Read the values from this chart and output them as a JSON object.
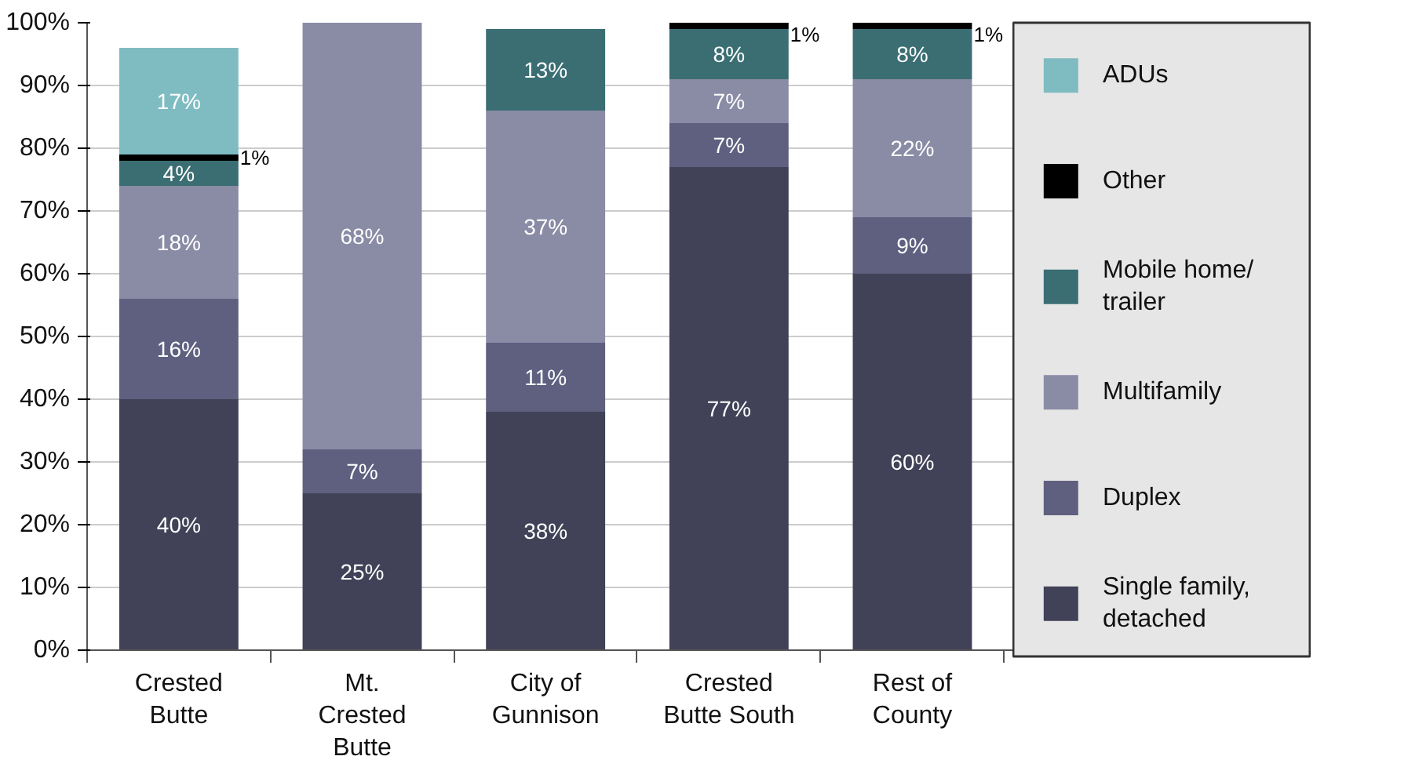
{
  "chart_data": {
    "type": "bar",
    "stacked": true,
    "grid": "y",
    "legend": "right",
    "categories": [
      "Crested\nButte",
      "Mt.\nCrested\nButte",
      "City of\nGunnison",
      "Crested\nButte South",
      "Rest of\nCounty"
    ],
    "ylim": [
      0,
      100
    ],
    "yticks": [
      {
        "value": 0,
        "label": "0%"
      },
      {
        "value": 10,
        "label": "10%"
      },
      {
        "value": 20,
        "label": "20%"
      },
      {
        "value": 30,
        "label": "30%"
      },
      {
        "value": 40,
        "label": "40%"
      },
      {
        "value": 50,
        "label": "50%"
      },
      {
        "value": 60,
        "label": "60%"
      },
      {
        "value": 70,
        "label": "70%"
      },
      {
        "value": 80,
        "label": "80%"
      },
      {
        "value": 90,
        "label": "90%"
      },
      {
        "value": 100,
        "label": "100%"
      }
    ],
    "series": [
      {
        "name": "Single family,\ndetached",
        "color": "#414257",
        "values": [
          40,
          25,
          38,
          77,
          60
        ],
        "value_labels": [
          "40%",
          "25%",
          "38%",
          "77%",
          "60%"
        ]
      },
      {
        "name": "Duplex",
        "color": "#5f6080",
        "values": [
          16,
          7,
          11,
          7,
          9
        ],
        "value_labels": [
          "16%",
          "7%",
          "11%",
          "7%",
          "9%"
        ]
      },
      {
        "name": "Multifamily",
        "color": "#8a8ba5",
        "values": [
          18,
          68,
          37,
          7,
          22
        ],
        "value_labels": [
          "18%",
          "68%",
          "37%",
          "7%",
          "22%"
        ]
      },
      {
        "name": "Mobile home/\ntrailer",
        "color": "#3a6e73",
        "values": [
          4,
          null,
          13,
          8,
          8
        ],
        "value_labels": [
          "4%",
          null,
          "13%",
          "8%",
          "8%"
        ]
      },
      {
        "name": "Other",
        "color": "#000000",
        "values": [
          1,
          null,
          null,
          1,
          1
        ],
        "value_labels": [
          "1%",
          null,
          null,
          "1%",
          "1%"
        ]
      },
      {
        "name": "ADUs",
        "color": "#7fbcc2",
        "values": [
          17,
          null,
          null,
          null,
          null
        ],
        "value_labels": [
          "17%",
          null,
          null,
          null,
          null
        ]
      }
    ]
  }
}
